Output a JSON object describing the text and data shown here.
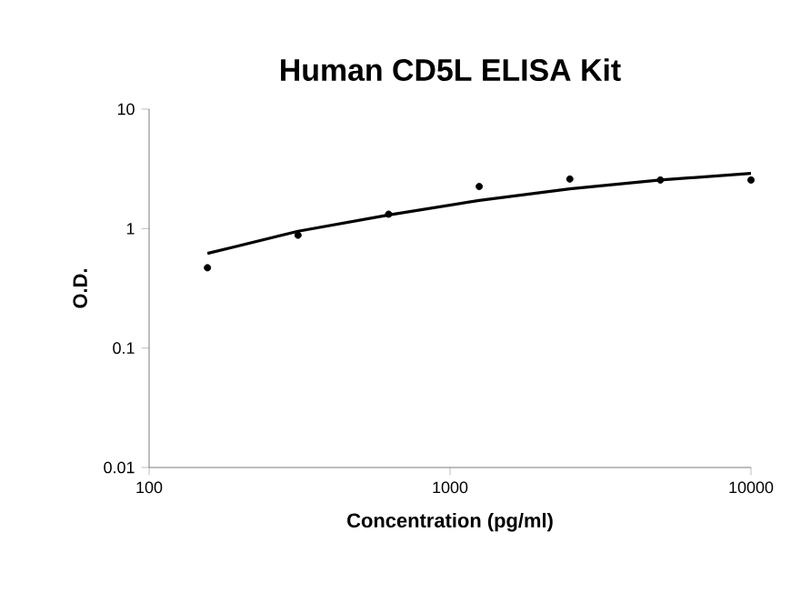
{
  "chart_data": {
    "type": "scatter",
    "title": "Human CD5L ELISA Kit",
    "xlabel": "Concentration (pg/ml)",
    "ylabel": "O.D.",
    "log": "xy",
    "grid": false,
    "xlim": [
      100,
      10000
    ],
    "xticks": [
      100,
      1000,
      10000
    ],
    "ylim": [
      0.01,
      10
    ],
    "yticks": [
      0.01,
      0.1,
      1,
      10
    ],
    "series": [
      {
        "color": "#000000",
        "marker": "circle",
        "x": [
          156.25,
          312.5,
          625,
          1250,
          2500,
          5000,
          10000
        ],
        "values": [
          0.47,
          0.88,
          1.32,
          2.25,
          2.6,
          2.55,
          2.55
        ]
      },
      {
        "type": "line",
        "color": "#000000",
        "marker": "none",
        "line_style": "solid",
        "x": [
          156.25,
          312.5,
          625,
          1250,
          2500,
          5000,
          10000
        ],
        "values": [
          0.62,
          0.95,
          1.3,
          1.72,
          2.15,
          2.55,
          2.9
        ]
      }
    ]
  }
}
